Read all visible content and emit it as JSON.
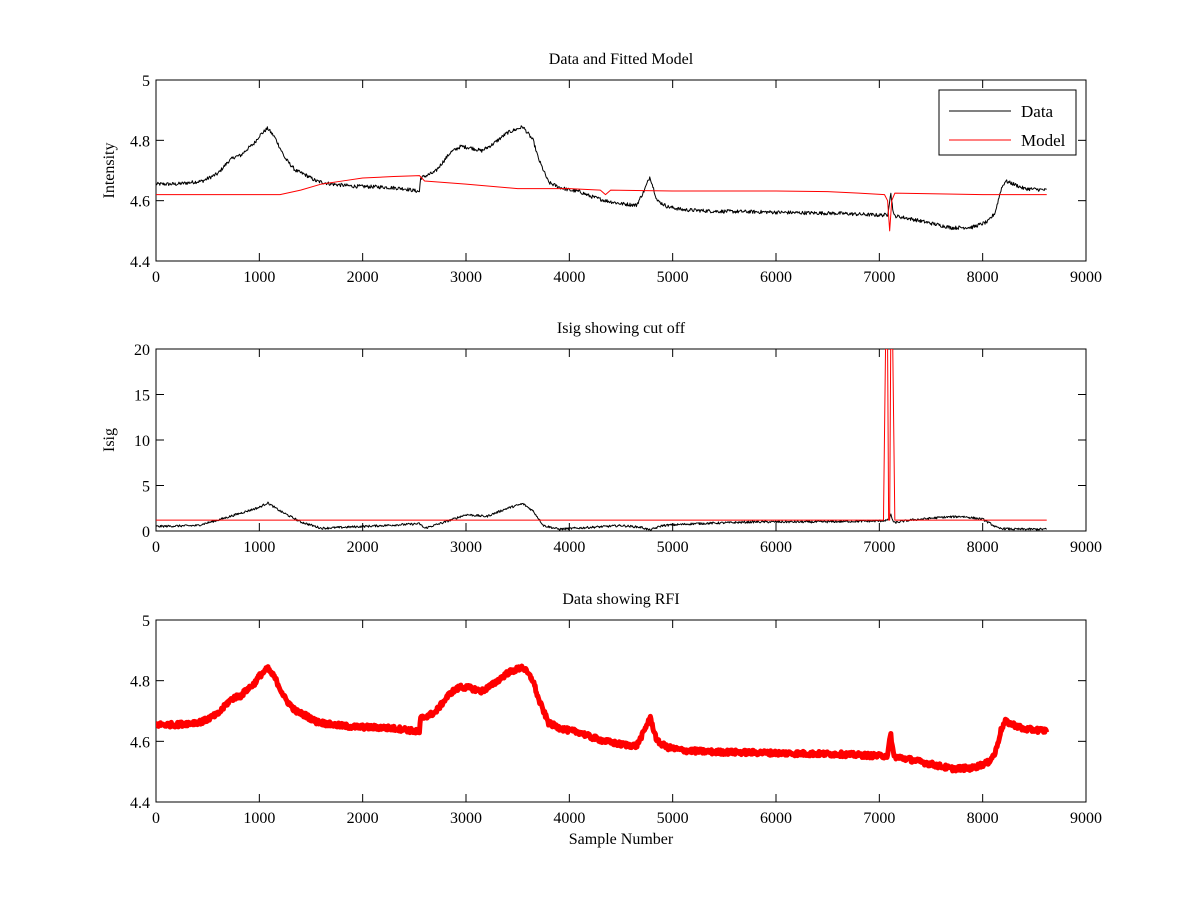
{
  "chart_data": [
    {
      "type": "line",
      "title": "Data and Fitted Model",
      "xlabel": "",
      "ylabel": "Intensity",
      "xlim": [
        0,
        9000
      ],
      "ylim": [
        4.4,
        5
      ],
      "xticks": [
        "0",
        "1000",
        "2000",
        "3000",
        "4000",
        "5000",
        "6000",
        "7000",
        "8000",
        "9000"
      ],
      "yticks": [
        "4.4",
        "4.6",
        "4.8",
        "5"
      ],
      "legend": {
        "placement": "top-right",
        "entries": [
          "Data",
          "Model"
        ]
      },
      "series": [
        {
          "name": "Data",
          "color": "#000000",
          "noise": 0.006,
          "points": [
            [
              0,
              4.655
            ],
            [
              200,
              4.655
            ],
            [
              450,
              4.665
            ],
            [
              600,
              4.69
            ],
            [
              700,
              4.73
            ],
            [
              760,
              4.745
            ],
            [
              820,
              4.75
            ],
            [
              880,
              4.77
            ],
            [
              950,
              4.79
            ],
            [
              1000,
              4.815
            ],
            [
              1080,
              4.84
            ],
            [
              1150,
              4.81
            ],
            [
              1250,
              4.74
            ],
            [
              1350,
              4.7
            ],
            [
              1450,
              4.685
            ],
            [
              1550,
              4.665
            ],
            [
              1700,
              4.655
            ],
            [
              1900,
              4.648
            ],
            [
              2200,
              4.645
            ],
            [
              2400,
              4.64
            ],
            [
              2550,
              4.63
            ],
            [
              2560,
              4.675
            ],
            [
              2700,
              4.695
            ],
            [
              2850,
              4.76
            ],
            [
              2950,
              4.78
            ],
            [
              3050,
              4.775
            ],
            [
              3150,
              4.765
            ],
            [
              3250,
              4.785
            ],
            [
              3400,
              4.825
            ],
            [
              3550,
              4.845
            ],
            [
              3650,
              4.8
            ],
            [
              3700,
              4.74
            ],
            [
              3800,
              4.66
            ],
            [
              3900,
              4.645
            ],
            [
              4000,
              4.635
            ],
            [
              4100,
              4.63
            ],
            [
              4200,
              4.615
            ],
            [
              4350,
              4.6
            ],
            [
              4500,
              4.59
            ],
            [
              4650,
              4.585
            ],
            [
              4720,
              4.63
            ],
            [
              4780,
              4.68
            ],
            [
              4850,
              4.6
            ],
            [
              4950,
              4.58
            ],
            [
              5100,
              4.57
            ],
            [
              5400,
              4.565
            ],
            [
              5800,
              4.563
            ],
            [
              6200,
              4.56
            ],
            [
              6600,
              4.558
            ],
            [
              7000,
              4.552
            ],
            [
              7080,
              4.553
            ],
            [
              7110,
              4.625
            ],
            [
              7140,
              4.55
            ],
            [
              7300,
              4.54
            ],
            [
              7500,
              4.525
            ],
            [
              7700,
              4.51
            ],
            [
              7900,
              4.512
            ],
            [
              8050,
              4.53
            ],
            [
              8120,
              4.56
            ],
            [
              8180,
              4.64
            ],
            [
              8220,
              4.665
            ],
            [
              8300,
              4.655
            ],
            [
              8400,
              4.64
            ],
            [
              8500,
              4.638
            ],
            [
              8620,
              4.635
            ]
          ]
        },
        {
          "name": "Model",
          "color": "#ff0000",
          "noise": 0,
          "points": [
            [
              0,
              4.62
            ],
            [
              1200,
              4.62
            ],
            [
              1400,
              4.635
            ],
            [
              1600,
              4.655
            ],
            [
              1800,
              4.665
            ],
            [
              2000,
              4.675
            ],
            [
              2300,
              4.68
            ],
            [
              2550,
              4.683
            ],
            [
              2600,
              4.665
            ],
            [
              3000,
              4.655
            ],
            [
              3500,
              4.64
            ],
            [
              4000,
              4.64
            ],
            [
              4300,
              4.635
            ],
            [
              4350,
              4.62
            ],
            [
              4400,
              4.635
            ],
            [
              5000,
              4.632
            ],
            [
              6000,
              4.632
            ],
            [
              6500,
              4.63
            ],
            [
              6800,
              4.625
            ],
            [
              7050,
              4.62
            ],
            [
              7080,
              4.6
            ],
            [
              7100,
              4.5
            ],
            [
              7120,
              4.6
            ],
            [
              7150,
              4.625
            ],
            [
              8000,
              4.62
            ],
            [
              8620,
              4.62
            ]
          ]
        }
      ]
    },
    {
      "type": "line",
      "title": "Isig showing cut off",
      "xlabel": "",
      "ylabel": "Isig",
      "xlim": [
        0,
        9000
      ],
      "ylim": [
        0,
        20
      ],
      "xticks": [
        "0",
        "1000",
        "2000",
        "3000",
        "4000",
        "5000",
        "6000",
        "7000",
        "8000",
        "9000"
      ],
      "yticks": [
        "0",
        "5",
        "10",
        "15",
        "20"
      ],
      "series": [
        {
          "name": "Isig",
          "color": "#000000",
          "noise": 0.12,
          "points": [
            [
              0,
              0.5
            ],
            [
              400,
              0.6
            ],
            [
              600,
              1.2
            ],
            [
              800,
              1.9
            ],
            [
              1000,
              2.6
            ],
            [
              1080,
              3.1
            ],
            [
              1200,
              2.2
            ],
            [
              1400,
              1.0
            ],
            [
              1600,
              0.3
            ],
            [
              1800,
              0.4
            ],
            [
              2200,
              0.6
            ],
            [
              2550,
              0.8
            ],
            [
              2600,
              0.3
            ],
            [
              2800,
              1.0
            ],
            [
              3000,
              1.8
            ],
            [
              3200,
              1.6
            ],
            [
              3400,
              2.5
            ],
            [
              3550,
              3.0
            ],
            [
              3650,
              2.2
            ],
            [
              3750,
              0.6
            ],
            [
              3900,
              0.2
            ],
            [
              4200,
              0.4
            ],
            [
              4500,
              0.6
            ],
            [
              4700,
              0.4
            ],
            [
              4780,
              0.1
            ],
            [
              4900,
              0.6
            ],
            [
              5200,
              0.8
            ],
            [
              5800,
              1.0
            ],
            [
              6400,
              1.0
            ],
            [
              7000,
              1.1
            ],
            [
              7090,
              1.2
            ],
            [
              7110,
              1.8
            ],
            [
              7140,
              0.9
            ],
            [
              7300,
              1.2
            ],
            [
              7600,
              1.5
            ],
            [
              7800,
              1.6
            ],
            [
              8000,
              1.3
            ],
            [
              8150,
              0.3
            ],
            [
              8300,
              0.2
            ],
            [
              8620,
              0.2
            ]
          ]
        },
        {
          "name": "Cutoff",
          "color": "#ff0000",
          "noise": 0,
          "points": [
            [
              0,
              1.2
            ],
            [
              7040,
              1.2
            ],
            [
              7060,
              20
            ],
            [
              7080,
              20
            ],
            [
              7090,
              1.2
            ],
            [
              7100,
              1.2
            ],
            [
              7110,
              20
            ],
            [
              7130,
              20
            ],
            [
              7150,
              1.2
            ],
            [
              8620,
              1.2
            ]
          ]
        }
      ]
    },
    {
      "type": "line",
      "title": "Data showing RFI",
      "xlabel": "Sample Number",
      "ylabel": "",
      "xlim": [
        0,
        9000
      ],
      "ylim": [
        4.4,
        5
      ],
      "xticks": [
        "0",
        "1000",
        "2000",
        "3000",
        "4000",
        "5000",
        "6000",
        "7000",
        "8000",
        "9000"
      ],
      "yticks": [
        "4.4",
        "4.6",
        "4.8",
        "5"
      ],
      "series": [
        {
          "name": "Data",
          "color": "#ff0000",
          "noise": 0.008,
          "thick": true,
          "points": [
            [
              0,
              4.655
            ],
            [
              200,
              4.655
            ],
            [
              450,
              4.665
            ],
            [
              600,
              4.69
            ],
            [
              700,
              4.73
            ],
            [
              760,
              4.745
            ],
            [
              820,
              4.75
            ],
            [
              880,
              4.77
            ],
            [
              950,
              4.79
            ],
            [
              1000,
              4.815
            ],
            [
              1080,
              4.84
            ],
            [
              1150,
              4.81
            ],
            [
              1250,
              4.74
            ],
            [
              1350,
              4.7
            ],
            [
              1450,
              4.685
            ],
            [
              1550,
              4.665
            ],
            [
              1700,
              4.655
            ],
            [
              1900,
              4.648
            ],
            [
              2200,
              4.645
            ],
            [
              2400,
              4.64
            ],
            [
              2550,
              4.63
            ],
            [
              2560,
              4.675
            ],
            [
              2700,
              4.695
            ],
            [
              2850,
              4.76
            ],
            [
              2950,
              4.78
            ],
            [
              3050,
              4.775
            ],
            [
              3150,
              4.765
            ],
            [
              3250,
              4.785
            ],
            [
              3400,
              4.825
            ],
            [
              3550,
              4.845
            ],
            [
              3650,
              4.8
            ],
            [
              3700,
              4.74
            ],
            [
              3800,
              4.66
            ],
            [
              3900,
              4.645
            ],
            [
              4000,
              4.635
            ],
            [
              4100,
              4.63
            ],
            [
              4200,
              4.615
            ],
            [
              4350,
              4.6
            ],
            [
              4500,
              4.59
            ],
            [
              4650,
              4.585
            ],
            [
              4720,
              4.63
            ],
            [
              4780,
              4.68
            ],
            [
              4850,
              4.6
            ],
            [
              4950,
              4.58
            ],
            [
              5100,
              4.57
            ],
            [
              5400,
              4.565
            ],
            [
              5800,
              4.563
            ],
            [
              6200,
              4.56
            ],
            [
              6600,
              4.558
            ],
            [
              7000,
              4.552
            ],
            [
              7080,
              4.553
            ],
            [
              7110,
              4.625
            ],
            [
              7140,
              4.55
            ],
            [
              7300,
              4.54
            ],
            [
              7500,
              4.525
            ],
            [
              7700,
              4.51
            ],
            [
              7900,
              4.512
            ],
            [
              8050,
              4.53
            ],
            [
              8120,
              4.56
            ],
            [
              8180,
              4.64
            ],
            [
              8220,
              4.665
            ],
            [
              8300,
              4.655
            ],
            [
              8400,
              4.64
            ],
            [
              8500,
              4.638
            ],
            [
              8620,
              4.635
            ]
          ]
        }
      ]
    }
  ]
}
